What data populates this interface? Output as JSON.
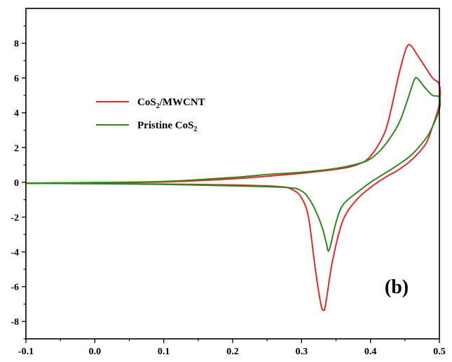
{
  "chart_data": {
    "type": "line",
    "title": "",
    "xlabel": "",
    "ylabel": "",
    "xlim": [
      -0.1,
      0.5
    ],
    "ylim": [
      -9,
      10
    ],
    "x_ticks": [
      "-0.1",
      "0.0",
      "0.1",
      "0.2",
      "0.3",
      "0.4",
      "0.5"
    ],
    "x_tick_values": [
      -0.1,
      0.0,
      0.1,
      0.2,
      0.3,
      0.4,
      0.5
    ],
    "y_ticks": [
      "-8",
      "-6",
      "-4",
      "-2",
      "0",
      "2",
      "4",
      "6",
      "8"
    ],
    "y_tick_values": [
      -8,
      -6,
      -4,
      -2,
      0,
      2,
      4,
      6,
      8
    ],
    "panel_label": "(b)",
    "grid": false,
    "legend_position": "upper-left",
    "series": [
      {
        "name": "CoS2/MWCNT",
        "legend_main": "CoS",
        "legend_sub": "2",
        "legend_rest": "/MWCNT",
        "color": "#e8262a",
        "forward": [
          [
            -0.1,
            -0.05
          ],
          [
            0.0,
            -0.02
          ],
          [
            0.1,
            0.02
          ],
          [
            0.2,
            0.2
          ],
          [
            0.25,
            0.35
          ],
          [
            0.3,
            0.52
          ],
          [
            0.35,
            0.75
          ],
          [
            0.38,
            1.0
          ],
          [
            0.4,
            1.5
          ],
          [
            0.42,
            2.8
          ],
          [
            0.43,
            4.2
          ],
          [
            0.44,
            6.0
          ],
          [
            0.45,
            7.5
          ],
          [
            0.455,
            7.9
          ],
          [
            0.46,
            7.8
          ],
          [
            0.47,
            7.2
          ],
          [
            0.48,
            6.6
          ],
          [
            0.49,
            6.0
          ],
          [
            0.5,
            5.6
          ]
        ],
        "reverse": [
          [
            0.5,
            4.5
          ],
          [
            0.49,
            3.2
          ],
          [
            0.48,
            2.2
          ],
          [
            0.46,
            1.3
          ],
          [
            0.44,
            0.7
          ],
          [
            0.42,
            0.25
          ],
          [
            0.4,
            -0.3
          ],
          [
            0.38,
            -1.0
          ],
          [
            0.36,
            -2.2
          ],
          [
            0.345,
            -4.5
          ],
          [
            0.335,
            -7.0
          ],
          [
            0.332,
            -7.35
          ],
          [
            0.328,
            -7.0
          ],
          [
            0.32,
            -5.0
          ],
          [
            0.31,
            -2.0
          ],
          [
            0.3,
            -0.9
          ],
          [
            0.29,
            -0.5
          ],
          [
            0.27,
            -0.25
          ],
          [
            0.2,
            -0.15
          ],
          [
            0.1,
            -0.1
          ],
          [
            0.0,
            -0.07
          ],
          [
            -0.1,
            -0.06
          ]
        ]
      },
      {
        "name": "Pristine CoS2",
        "legend_main": "Pristine CoS",
        "legend_sub": "2",
        "legend_rest": "",
        "color": "#2a8a1a",
        "forward": [
          [
            -0.1,
            -0.05
          ],
          [
            0.0,
            -0.01
          ],
          [
            0.1,
            0.05
          ],
          [
            0.2,
            0.28
          ],
          [
            0.25,
            0.45
          ],
          [
            0.3,
            0.58
          ],
          [
            0.35,
            0.8
          ],
          [
            0.38,
            1.05
          ],
          [
            0.4,
            1.35
          ],
          [
            0.42,
            2.1
          ],
          [
            0.44,
            3.3
          ],
          [
            0.45,
            4.3
          ],
          [
            0.46,
            5.5
          ],
          [
            0.465,
            6.0
          ],
          [
            0.47,
            5.9
          ],
          [
            0.48,
            5.4
          ],
          [
            0.49,
            5.0
          ],
          [
            0.5,
            4.9
          ]
        ],
        "reverse": [
          [
            0.5,
            4.2
          ],
          [
            0.49,
            3.2
          ],
          [
            0.48,
            2.5
          ],
          [
            0.46,
            1.6
          ],
          [
            0.44,
            1.0
          ],
          [
            0.42,
            0.5
          ],
          [
            0.4,
            0.0
          ],
          [
            0.38,
            -0.6
          ],
          [
            0.36,
            -1.3
          ],
          [
            0.35,
            -2.3
          ],
          [
            0.34,
            -3.9
          ],
          [
            0.336,
            -3.5
          ],
          [
            0.33,
            -2.6
          ],
          [
            0.32,
            -1.6
          ],
          [
            0.31,
            -0.9
          ],
          [
            0.3,
            -0.5
          ],
          [
            0.28,
            -0.3
          ],
          [
            0.2,
            -0.2
          ],
          [
            0.1,
            -0.12
          ],
          [
            0.0,
            -0.08
          ],
          [
            -0.1,
            -0.06
          ]
        ]
      }
    ]
  }
}
